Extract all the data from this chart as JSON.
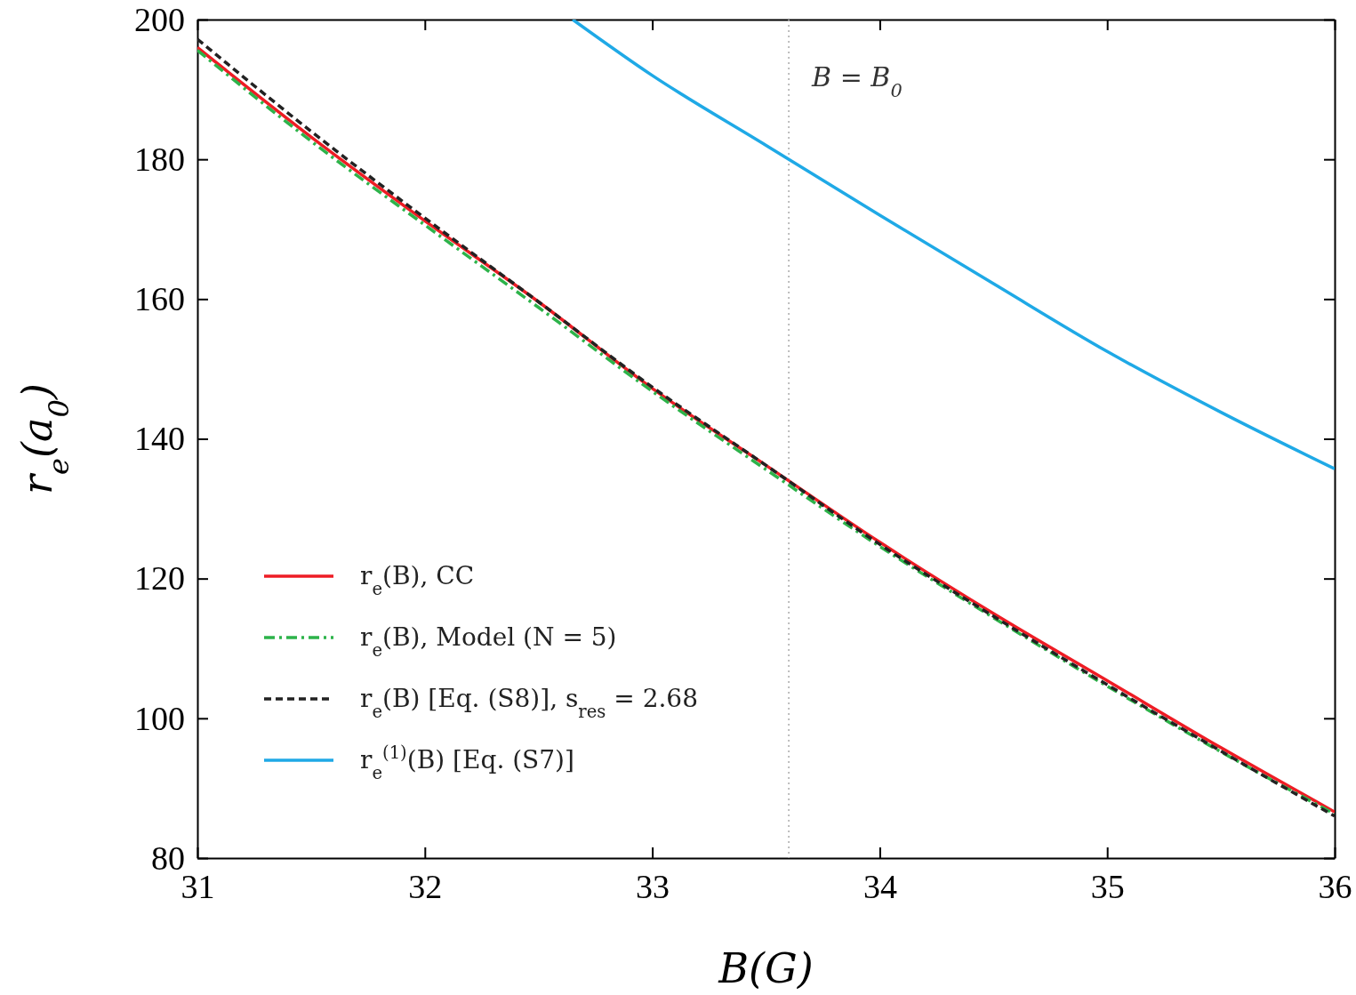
{
  "chart_data": {
    "type": "line",
    "xlabel": "B(G)",
    "ylabel": "r$_{e}$(a$_{0}$)",
    "xlim": [
      31,
      36
    ],
    "ylim": [
      80,
      200
    ],
    "xticks": [
      31,
      32,
      33,
      34,
      35,
      36
    ],
    "yticks": [
      80,
      100,
      120,
      140,
      160,
      180,
      200
    ],
    "legend": "bottom left",
    "grid": false,
    "ref_lines": [
      {
        "axis": "x",
        "value": 33.6,
        "label": "B = B$_{0}$",
        "color": "#aaaaaa",
        "line_style": "dotted"
      }
    ],
    "series": [
      {
        "name": "r$_{e}$(B), CC",
        "color": "#ee1c24",
        "line_style": "solid",
        "x": [
          31,
          31.5,
          32,
          32.5,
          33,
          33.5,
          34,
          34.5,
          35,
          35.5,
          36
        ],
        "values": [
          196,
          183.2,
          171.2,
          159.6,
          147.2,
          136.2,
          125.2,
          115,
          105.4,
          95.8,
          86.6
        ]
      },
      {
        "name": "r$_{e}$(B), Model (N = 5)",
        "color": "#2db34a",
        "line_style": "dashdot",
        "x": [
          31,
          31.5,
          32,
          32.5,
          33,
          33.5,
          34,
          34.5,
          35,
          35.5,
          36
        ],
        "values": [
          195.6,
          182.6,
          170.6,
          158.8,
          146.8,
          135.6,
          124.6,
          114.4,
          104.6,
          95.2,
          86.3
        ]
      },
      {
        "name": "r$_{e}$(B) [Eq. (S8)], s$_{res}$ = 2.68",
        "color": "#222222",
        "line_style": "dashed",
        "x": [
          31,
          31.5,
          32,
          32.5,
          33,
          33.5,
          34,
          34.5,
          35,
          35.5,
          36
        ],
        "values": [
          197.2,
          184,
          171.6,
          159.6,
          147.4,
          136.2,
          124.9,
          114.6,
          104.8,
          95.3,
          86
        ]
      },
      {
        "name": "r$_{e}$$^{(1)}$(B) [Eq. (S7)]",
        "color": "#1fa9e6",
        "line_style": "solid",
        "x": [
          32.65,
          33,
          33.5,
          34,
          34.5,
          35,
          35.5,
          36
        ],
        "values": [
          200,
          192,
          182,
          172,
          162.2,
          152.5,
          143.8,
          135.7
        ]
      }
    ]
  }
}
